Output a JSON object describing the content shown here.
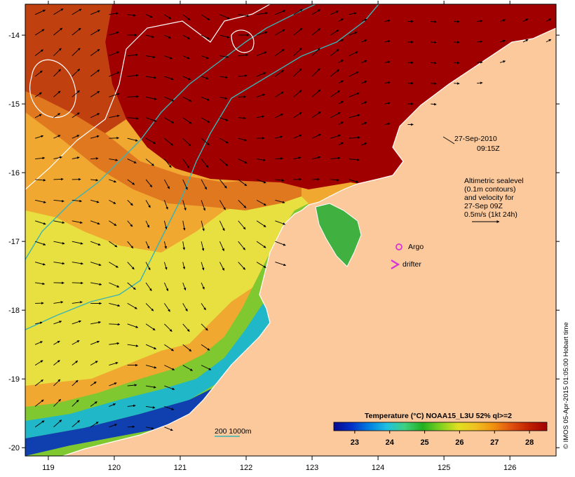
{
  "map": {
    "lon_range": [
      118.65,
      126.7
    ],
    "lat_range": [
      -20.12,
      -13.55
    ],
    "x_ticks": [
      119,
      120,
      121,
      122,
      123,
      124,
      125,
      126
    ],
    "y_ticks": [
      -14,
      -15,
      -16,
      -17,
      -18,
      -19,
      -20
    ],
    "colors": {
      "land": "#fcc99c",
      "hot": "#a00000",
      "coast": "#ffffff",
      "isobath": "#3ab3b3",
      "sealevel_contour": "#ffffff",
      "velocity_arrow": "#000000",
      "argo": "#d633d6",
      "drifter": "#d633d6"
    }
  },
  "annotations": {
    "date": "27-Sep-2010",
    "time": "09:15Z",
    "sealevel_info": [
      "Altimetric sealevel",
      "(0.1m contours)",
      "and velocity for",
      "27-Sep 09Z",
      "0.5m/s (1kt 24h)"
    ],
    "argo_label": "Argo",
    "drifter_label": "drifter",
    "isobath_label": "200  1000m",
    "argo_icon": "circle-marker",
    "drifter_icon": "chevron-marker"
  },
  "colorbar": {
    "title": "Temperature (°C) NOAA15_L3U 52% ql>=2",
    "range": [
      22.4,
      28.5
    ],
    "ticks": [
      "23",
      "24",
      "25",
      "26",
      "27",
      "28"
    ],
    "colors": [
      "#0a0a8c",
      "#0030c8",
      "#0080e0",
      "#20c0e0",
      "#40d080",
      "#20b020",
      "#80d020",
      "#e0e020",
      "#f0c020",
      "#f09010",
      "#e05010",
      "#c02000",
      "#a00000"
    ]
  },
  "credit": "© IMOS 05-Apr-2015 01:05:00 Hobart time"
}
